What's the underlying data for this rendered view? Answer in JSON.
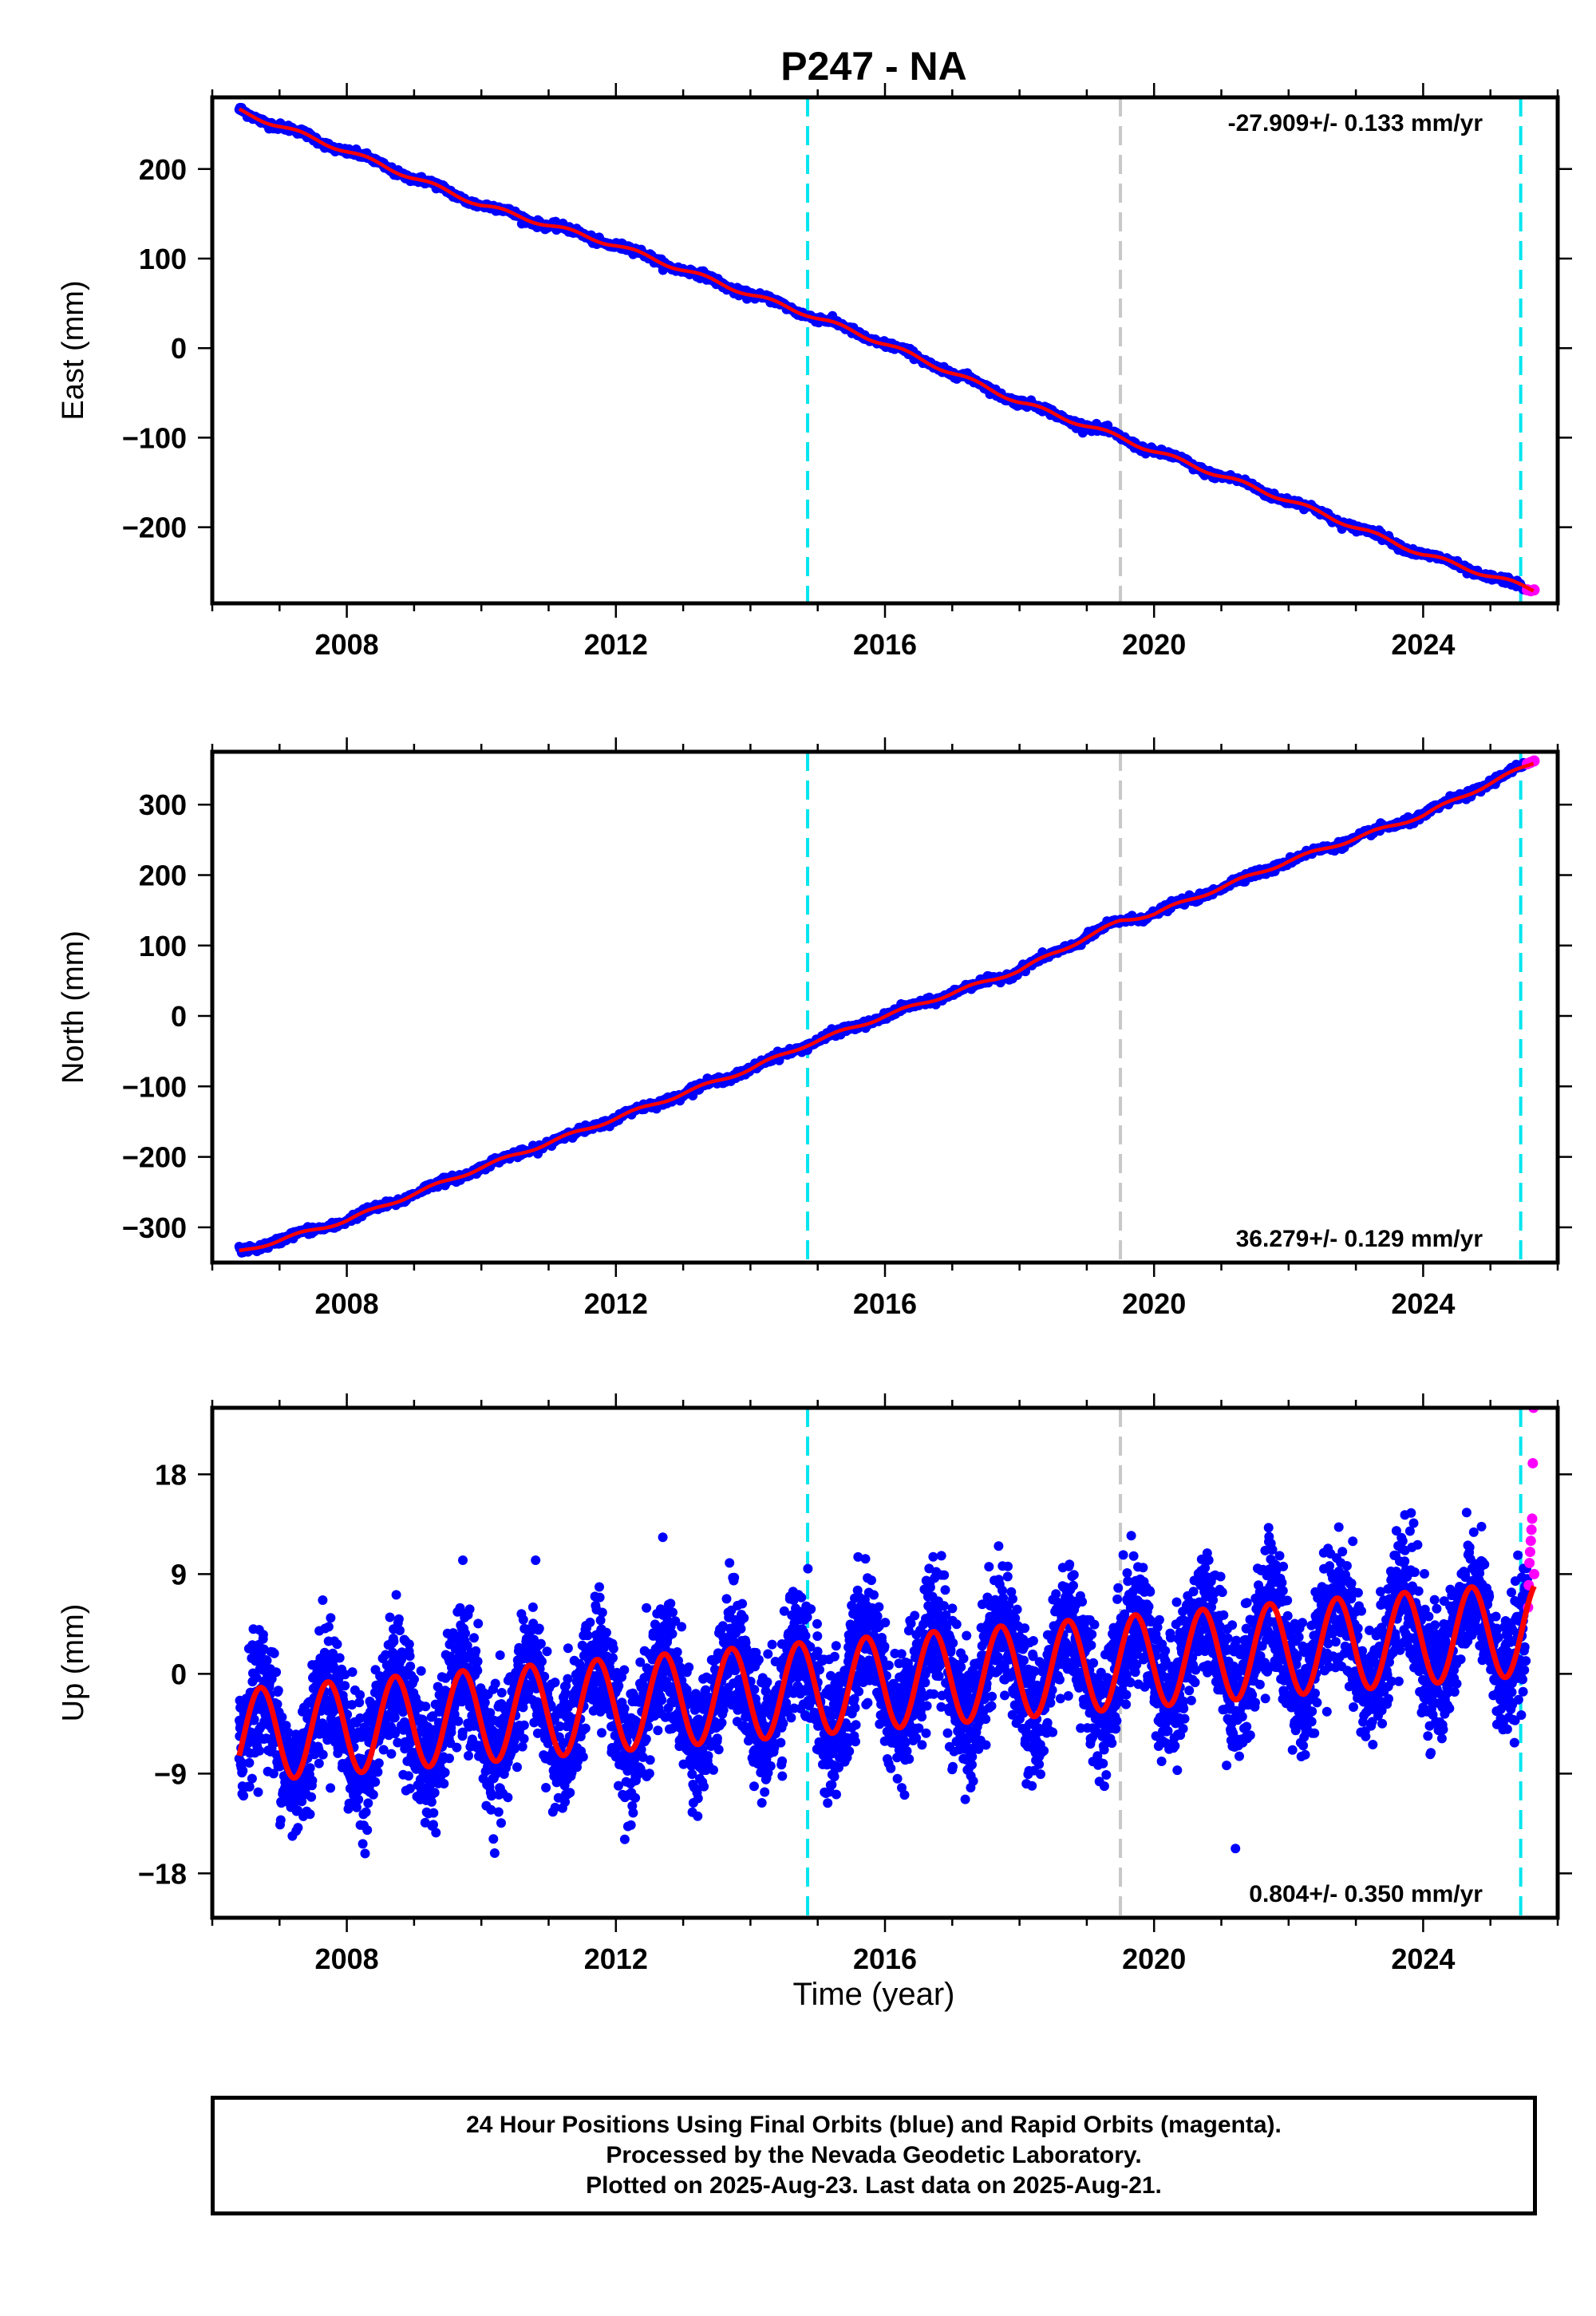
{
  "chart_data": {
    "title": "P247 - NA",
    "xlabel": "Time (year)",
    "x_ticks": [
      2008,
      2012,
      2016,
      2020,
      2024
    ],
    "xlim": [
      2006.0,
      2026.0
    ],
    "reference_lines": [
      {
        "x": 2014.85,
        "color": "#00e5ee",
        "style": "dashed"
      },
      {
        "x": 2019.5,
        "color": "#c8c8c8",
        "style": "dashed"
      },
      {
        "x": 2025.45,
        "color": "#00e5ee",
        "style": "dashed"
      }
    ],
    "colors": {
      "final_orbits": "#0000ff",
      "rapid_orbits": "#ff00ff",
      "model": "#ff0000"
    },
    "panels": [
      {
        "type": "scatter",
        "ylabel": "East (mm)",
        "ylim": [
          -285,
          280
        ],
        "y_ticks": [
          -200,
          -100,
          0,
          100,
          200
        ],
        "rate": "-27.909+/- 0.133 mm/yr",
        "rate_position": "top-right",
        "series": [
          {
            "name": "final",
            "x": [
              2006.4,
              2008.0,
              2010.0,
              2012.0,
              2014.0,
              2014.85,
              2016.0,
              2018.0,
              2019.5,
              2020.0,
              2022.0,
              2024.0,
              2025.5
            ],
            "y": [
              265,
              220,
              160,
              115,
              60,
              38,
              5,
              -60,
              -100,
              -115,
              -170,
              -230,
              -268
            ]
          },
          {
            "name": "rapid",
            "x": [
              2025.55,
              2025.6,
              2025.65
            ],
            "y": [
              -270,
              -271,
              -270
            ]
          },
          {
            "name": "model",
            "x": [
              2006.4,
              2008.0,
              2010.0,
              2012.0,
              2014.0,
              2014.85,
              2016.0,
              2018.0,
              2019.5,
              2020.0,
              2022.0,
              2024.0,
              2025.65
            ],
            "y": [
              265,
              220,
              160,
              115,
              60,
              38,
              5,
              -60,
              -100,
              -115,
              -170,
              -230,
              -270
            ]
          }
        ]
      },
      {
        "type": "scatter",
        "ylabel": "North (mm)",
        "ylim": [
          -350,
          375
        ],
        "y_ticks": [
          -300,
          -200,
          -100,
          0,
          100,
          200,
          300
        ],
        "rate": "36.279+/- 0.129 mm/yr",
        "rate_position": "bottom-right",
        "series": [
          {
            "name": "final",
            "x": [
              2006.4,
              2008.0,
              2010.0,
              2012.0,
              2014.0,
              2014.85,
              2016.0,
              2018.0,
              2019.5,
              2020.0,
              2022.0,
              2024.0,
              2025.5
            ],
            "y": [
              -335,
              -290,
              -215,
              -145,
              -75,
              -40,
              0,
              65,
              135,
              145,
              220,
              285,
              355
            ]
          },
          {
            "name": "rapid",
            "x": [
              2025.55,
              2025.6,
              2025.65
            ],
            "y": [
              358,
              360,
              362
            ]
          },
          {
            "name": "model",
            "x": [
              2006.4,
              2008.0,
              2010.0,
              2012.0,
              2014.0,
              2014.85,
              2016.0,
              2018.0,
              2019.5,
              2020.0,
              2022.0,
              2024.0,
              2025.65
            ],
            "y": [
              -335,
              -290,
              -215,
              -145,
              -75,
              -40,
              0,
              65,
              135,
              145,
              220,
              285,
              360
            ]
          }
        ]
      },
      {
        "type": "scatter",
        "ylabel": "Up (mm)",
        "ylim": [
          -22,
          24
        ],
        "y_ticks": [
          -18,
          -9,
          0,
          9,
          18
        ],
        "rate": "0.804+/- 0.350 mm/yr",
        "rate_position": "bottom-right",
        "seasonal_model": {
          "t0": 2006.4,
          "t1": 2025.65,
          "intercept_start": -5.6,
          "intercept_end": 4.1,
          "amplitude": 4.2,
          "period_years": 1.0,
          "phase_peak": 0.72
        },
        "series": [
          {
            "name": "final",
            "x_range": [
              2006.4,
              2025.55
            ],
            "scatter_sd": 2.8
          },
          {
            "name": "rapid",
            "x": [
              2025.56,
              2025.57,
              2025.58,
              2025.59,
              2025.6,
              2025.61,
              2025.62,
              2025.63,
              2025.64,
              2025.65
            ],
            "y": [
              6,
              8,
              10,
              11,
              12,
              13,
              14,
              19,
              24,
              9
            ]
          }
        ]
      }
    ]
  },
  "footer": {
    "line1": "24 Hour Positions Using Final Orbits (blue) and Rapid Orbits (magenta).",
    "line2": "Processed by the Nevada Geodetic Laboratory.",
    "line3": "Plotted on 2025-Aug-23. Last data on 2025-Aug-21."
  }
}
